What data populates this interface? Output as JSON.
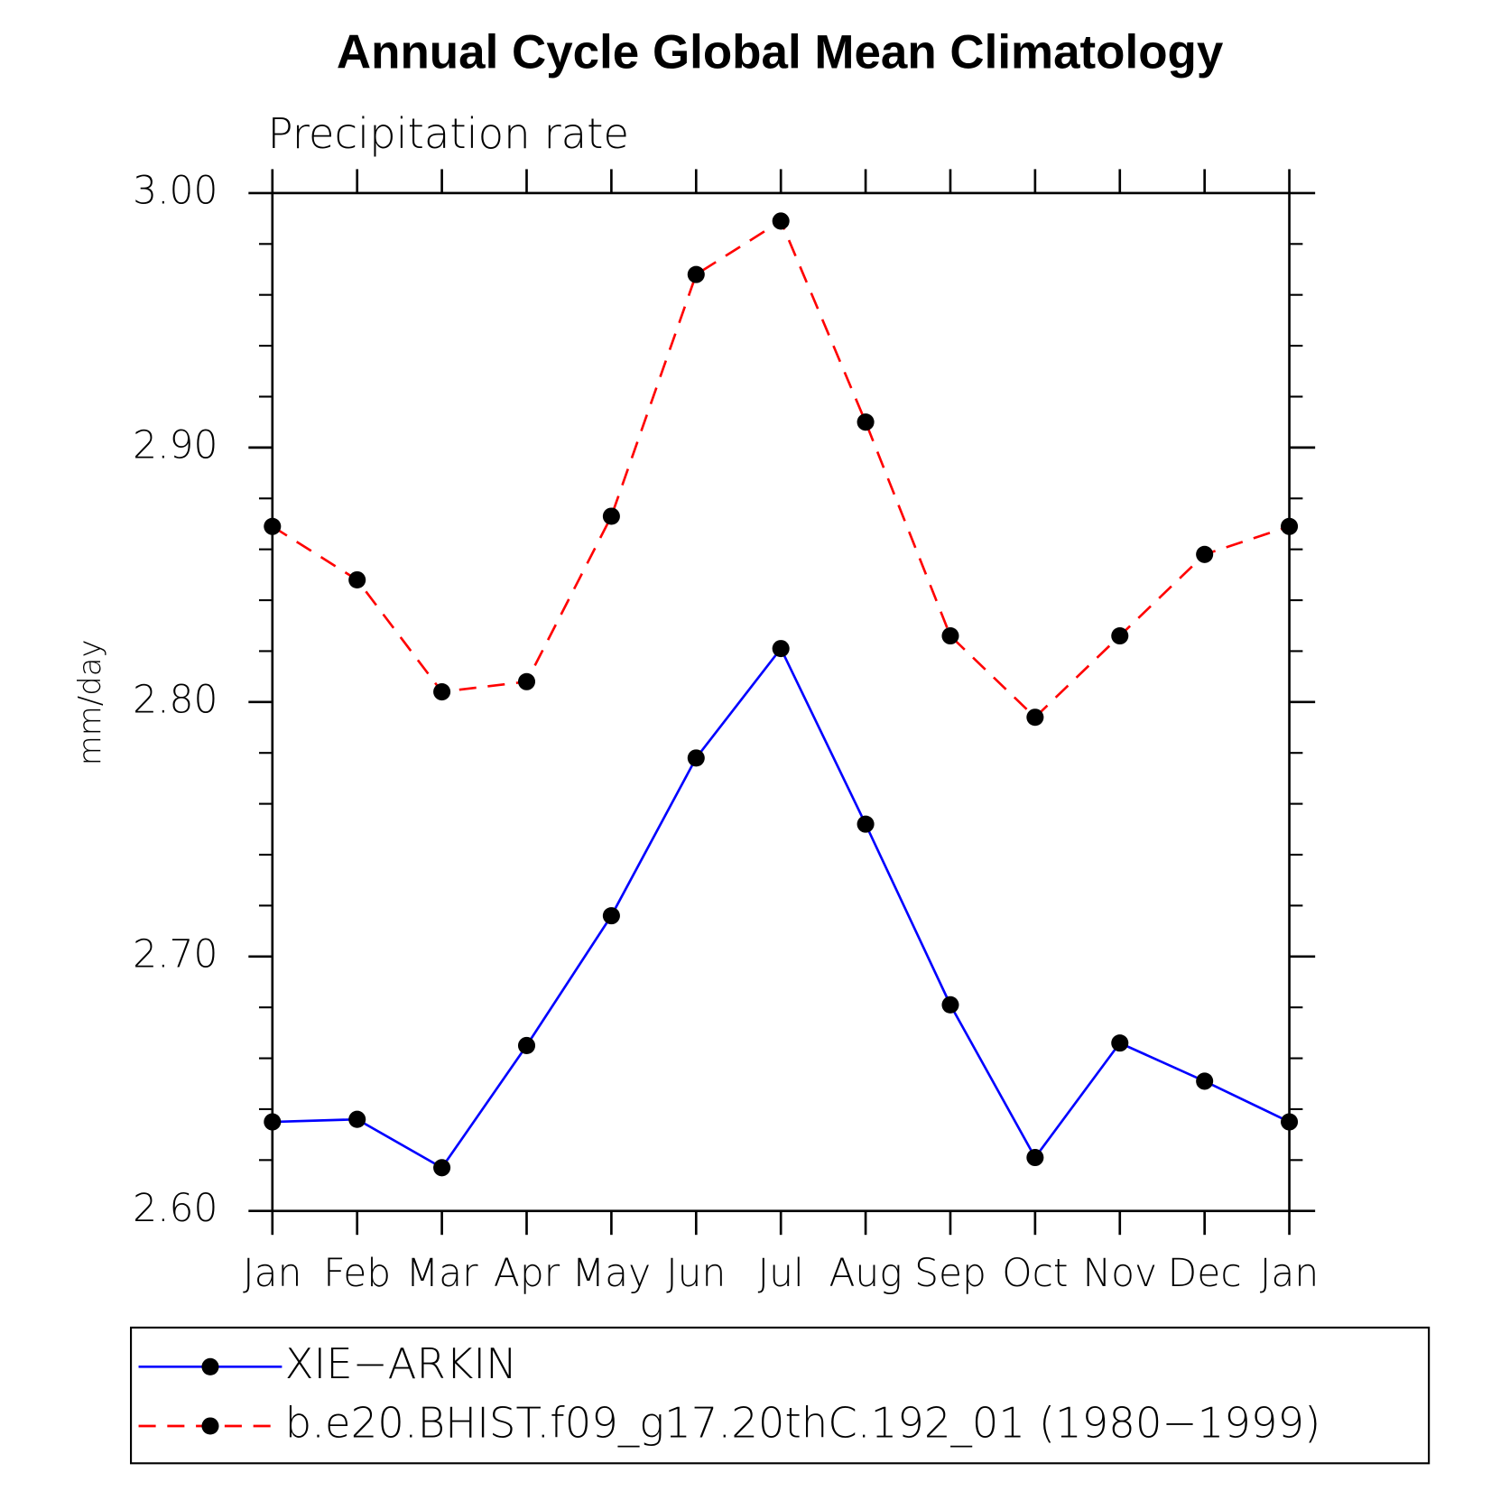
{
  "chart_data": {
    "type": "line",
    "title": "Annual Cycle Global Mean Climatology",
    "subtitle": "Precipitation rate",
    "y_label": "mm/day",
    "categories": [
      "Jan",
      "Feb",
      "Mar",
      "Apr",
      "May",
      "Jun",
      "Jul",
      "Aug",
      "Sep",
      "Oct",
      "Nov",
      "Dec",
      "Jan"
    ],
    "series": [
      {
        "name": "XIE−ARKIN",
        "color": "#0000ff",
        "dash": "solid",
        "values": [
          2.635,
          2.636,
          2.617,
          2.665,
          2.716,
          2.778,
          2.821,
          2.752,
          2.681,
          2.621,
          2.666,
          2.651,
          2.635
        ]
      },
      {
        "name": "b.e20.BHIST.f09_g17.20thC.192_01 (1980−1999)",
        "color": "#ff0000",
        "dash": "dashed",
        "values": [
          2.869,
          2.848,
          2.804,
          2.808,
          2.873,
          2.968,
          2.989,
          2.91,
          2.826,
          2.794,
          2.826,
          2.858,
          2.869
        ]
      }
    ],
    "ylim": [
      2.6,
      3.0
    ],
    "yticks": [
      {
        "value": 2.6,
        "label": "2.60"
      },
      {
        "value": 2.7,
        "label": "2.70"
      },
      {
        "value": 2.8,
        "label": "2.80"
      },
      {
        "value": 2.9,
        "label": "2.90"
      },
      {
        "value": 3.0,
        "label": "3.00"
      }
    ],
    "yminorticks": [
      2.62,
      2.64,
      2.66,
      2.68,
      2.72,
      2.74,
      2.76,
      2.78,
      2.82,
      2.84,
      2.86,
      2.88,
      2.92,
      2.94,
      2.96,
      2.98
    ],
    "grid": false,
    "legend": "bottom"
  }
}
